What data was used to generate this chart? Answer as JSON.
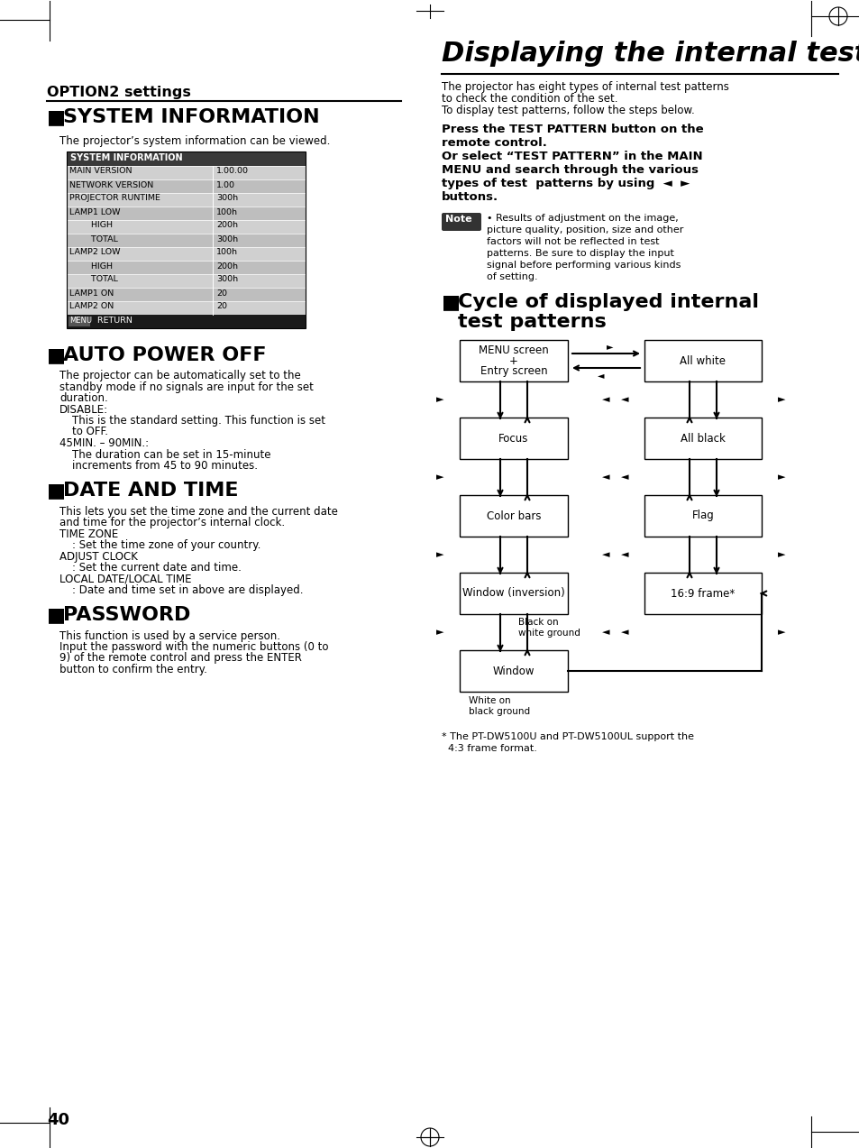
{
  "page_bg": "#ffffff",
  "left_section_title": "OPTION2 settings",
  "sys_info_heading": "SYSTEM INFORMATION",
  "sys_info_desc": "The projector’s system information can be viewed.",
  "sys_info_table_header": "SYSTEM INFORMATION",
  "sys_info_rows": [
    [
      "MAIN VERSION",
      "1.00.00"
    ],
    [
      "NETWORK VERSION",
      "1.00"
    ],
    [
      "PROJECTOR RUNTIME",
      "300h"
    ],
    [
      "LAMP1 LOW",
      "100h"
    ],
    [
      "        HIGH",
      "200h"
    ],
    [
      "        TOTAL",
      "300h"
    ],
    [
      "LAMP2 LOW",
      "100h"
    ],
    [
      "        HIGH",
      "200h"
    ],
    [
      "        TOTAL",
      "300h"
    ],
    [
      "LAMP1 ON",
      "20"
    ],
    [
      "LAMP2 ON",
      "20"
    ]
  ],
  "auto_power_heading": "AUTO POWER OFF",
  "auto_power_text": [
    "The projector can be automatically set to the",
    "standby mode if no signals are input for the set",
    "duration.",
    "DISABLE:",
    "    This is the standard setting. This function is set",
    "    to OFF.",
    "45MIN. – 90MIN.:",
    "    The duration can be set in 15-minute",
    "    increments from 45 to 90 minutes."
  ],
  "date_time_heading": "DATE AND TIME",
  "date_time_text": [
    "This lets you set the time zone and the current date",
    "and time for the projector’s internal clock.",
    "TIME ZONE",
    "    : Set the time zone of your country.",
    "ADJUST CLOCK",
    "    : Set the current date and time.",
    "LOCAL DATE/LOCAL TIME",
    "    : Date and time set in above are displayed."
  ],
  "password_heading": "PASSWORD",
  "password_text": [
    "This function is used by a service person.",
    "Input the password with the numeric buttons (0 to",
    "9) of the remote control and press the ENTER",
    "button to confirm the entry."
  ],
  "right_title": "Displaying the internal test pattern",
  "right_intro": [
    "The projector has eight types of internal test patterns",
    "to check the condition of the set.",
    "To display test patterns, follow the steps below."
  ],
  "right_bold_text": [
    "Press the TEST PATTERN button on the",
    "remote control.",
    "Or select “TEST PATTERN” in the MAIN",
    "MENU and search through the various",
    "types of test  patterns by using  ◄  ►",
    "buttons."
  ],
  "note_text": [
    "• Results of adjustment on the image,",
    "picture quality, position, size and other",
    "factors will not be reflected in test",
    "patterns. Be sure to display the input",
    "signal before performing various kinds",
    "of setting."
  ],
  "footnote_line1": "* The PT-DW5100U and PT-DW5100UL support the",
  "footnote_line2": "  4:3 frame format.",
  "page_number": "40"
}
